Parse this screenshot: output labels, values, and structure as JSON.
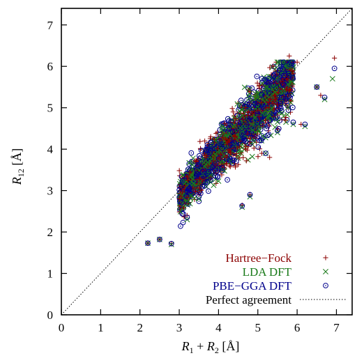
{
  "chart_data": {
    "type": "scatter",
    "xlabel": {
      "r1": "R",
      "sub1": "1",
      "plus": " + ",
      "r2": "R",
      "sub2": "2",
      "unit": " [Å]"
    },
    "ylabel": {
      "r": "R",
      "sub": "12",
      "unit": " [Å]"
    },
    "xlim": [
      0,
      7.4
    ],
    "ylim": [
      0,
      7.4
    ],
    "x_ticks": [
      "0",
      "1",
      "2",
      "3",
      "4",
      "5",
      "6",
      "7"
    ],
    "y_ticks": [
      "0",
      "1",
      "2",
      "3",
      "4",
      "5",
      "6",
      "7"
    ],
    "grid": false,
    "legend_position": "bottom-right",
    "reference_line": {
      "name": "Perfect agreement",
      "x": [
        0,
        7.4
      ],
      "y": [
        0,
        7.4
      ],
      "color": "#000000",
      "style": "dotted"
    },
    "series": [
      {
        "name": "Hartree−Fock",
        "marker": "+",
        "color": "#8b0000",
        "points": [
          [
            2.2,
            1.73
          ],
          [
            2.5,
            1.82
          ],
          [
            2.8,
            1.72
          ],
          [
            3.2,
            2.4
          ],
          [
            3.5,
            2.9
          ],
          [
            3.8,
            3.3
          ],
          [
            4.1,
            3.6
          ],
          [
            4.4,
            4.2
          ],
          [
            4.7,
            4.6
          ],
          [
            5.0,
            5.1
          ],
          [
            5.4,
            5.6
          ],
          [
            5.8,
            6.25
          ],
          [
            6.0,
            6.1
          ],
          [
            6.5,
            5.5
          ],
          [
            6.95,
            6.2
          ],
          [
            4.6,
            2.65
          ],
          [
            4.8,
            2.9
          ],
          [
            5.1,
            3.9
          ],
          [
            5.3,
            3.8
          ],
          [
            5.7,
            4.7
          ],
          [
            6.1,
            4.6
          ],
          [
            6.6,
            5.3
          ],
          [
            3.6,
            3.5
          ],
          [
            4.2,
            3.8
          ],
          [
            4.9,
            4.3
          ]
        ]
      },
      {
        "name": "LDA DFT",
        "marker": "x",
        "color": "#1a7a1a",
        "points": [
          [
            2.2,
            1.73
          ],
          [
            2.5,
            1.82
          ],
          [
            2.8,
            1.7
          ],
          [
            3.2,
            2.3
          ],
          [
            3.5,
            2.8
          ],
          [
            3.8,
            3.2
          ],
          [
            4.1,
            3.5
          ],
          [
            4.4,
            4.1
          ],
          [
            4.7,
            4.5
          ],
          [
            5.0,
            5.0
          ],
          [
            5.4,
            5.5
          ],
          [
            5.8,
            6.0
          ],
          [
            6.2,
            4.55
          ],
          [
            6.5,
            5.5
          ],
          [
            6.9,
            5.7
          ],
          [
            4.6,
            2.6
          ],
          [
            4.8,
            2.85
          ],
          [
            5.2,
            3.9
          ],
          [
            5.5,
            4.4
          ],
          [
            5.9,
            4.6
          ],
          [
            6.7,
            5.2
          ],
          [
            3.6,
            3.4
          ],
          [
            4.3,
            3.7
          ],
          [
            4.9,
            4.2
          ],
          [
            5.6,
            5.2
          ]
        ]
      },
      {
        "name": "PBE−GGA DFT",
        "marker": "circle",
        "color": "#00008b",
        "points": [
          [
            2.2,
            1.73
          ],
          [
            2.5,
            1.82
          ],
          [
            2.8,
            1.72
          ],
          [
            3.2,
            2.35
          ],
          [
            3.5,
            2.85
          ],
          [
            3.8,
            3.25
          ],
          [
            4.1,
            3.55
          ],
          [
            4.4,
            4.15
          ],
          [
            4.7,
            4.55
          ],
          [
            5.0,
            5.05
          ],
          [
            5.4,
            5.55
          ],
          [
            5.8,
            6.05
          ],
          [
            6.2,
            4.6
          ],
          [
            6.5,
            5.5
          ],
          [
            6.95,
            5.95
          ],
          [
            4.6,
            2.63
          ],
          [
            4.8,
            2.9
          ],
          [
            5.2,
            3.9
          ],
          [
            5.5,
            4.45
          ],
          [
            5.9,
            4.65
          ],
          [
            6.7,
            5.25
          ],
          [
            3.6,
            3.45
          ],
          [
            4.3,
            3.75
          ],
          [
            4.9,
            4.25
          ],
          [
            5.6,
            5.25
          ]
        ]
      }
    ]
  }
}
